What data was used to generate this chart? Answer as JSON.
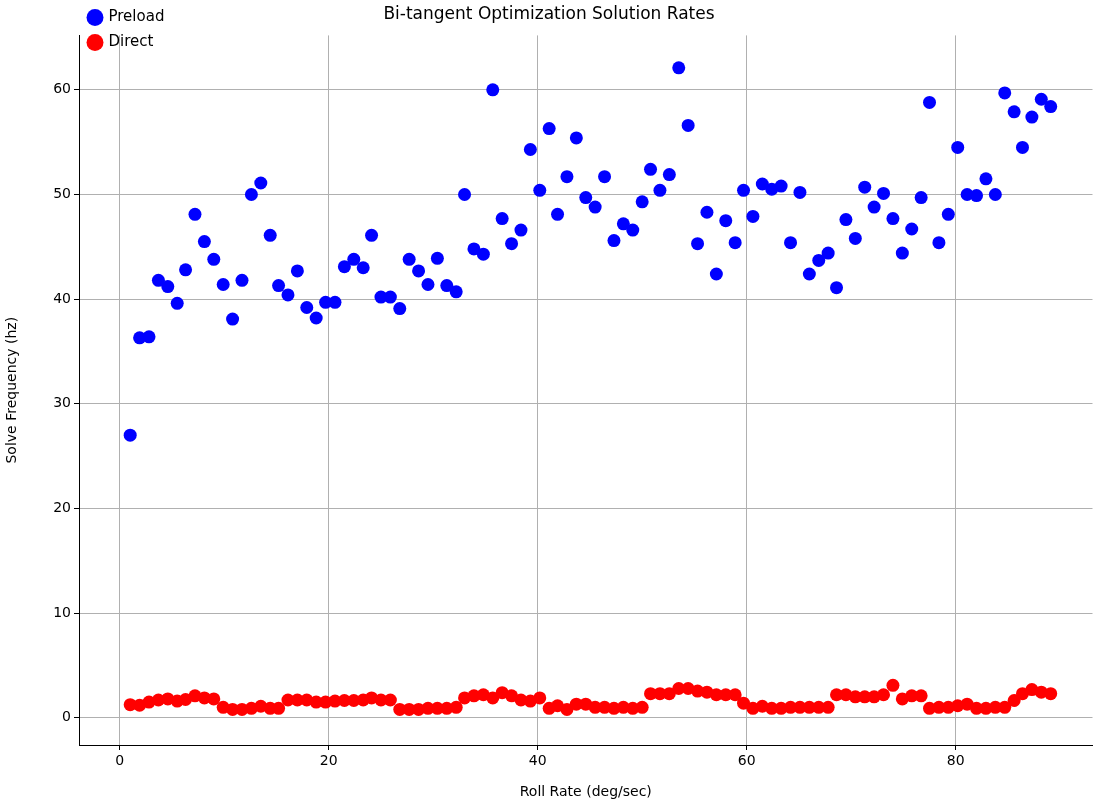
{
  "chart_data": {
    "type": "scatter",
    "title": "Bi-tangent Optimization Solution Rates",
    "xlabel": "Roll Rate (deg/sec)",
    "ylabel": "Solve Frequency (hz)",
    "x": [
      1.0,
      1.9,
      2.8,
      3.7,
      4.6,
      5.5,
      6.3,
      7.2,
      8.1,
      9.0,
      9.9,
      10.8,
      11.7,
      12.6,
      13.5,
      14.4,
      15.2,
      16.1,
      17.0,
      17.9,
      18.8,
      19.7,
      20.6,
      21.5,
      22.4,
      23.3,
      24.1,
      25.0,
      25.9,
      26.8,
      27.7,
      28.6,
      29.5,
      30.4,
      31.3,
      32.2,
      33.0,
      33.9,
      34.8,
      35.7,
      36.6,
      37.5,
      38.4,
      39.3,
      40.2,
      41.1,
      41.9,
      42.8,
      43.7,
      44.6,
      45.5,
      46.4,
      47.3,
      48.2,
      49.1,
      50.0,
      50.8,
      51.7,
      52.6,
      53.5,
      54.4,
      55.3,
      56.2,
      57.1,
      58.0,
      58.9,
      59.7,
      60.6,
      61.5,
      62.4,
      63.3,
      64.2,
      65.1,
      66.0,
      66.9,
      67.8,
      68.6,
      69.5,
      70.4,
      71.3,
      72.2,
      73.1,
      74.0,
      74.9,
      75.8,
      76.7,
      77.5,
      78.4,
      79.3,
      80.2,
      81.1,
      82.0,
      82.9,
      83.8,
      84.7,
      85.6,
      86.4,
      87.3,
      88.2,
      89.1
    ],
    "series": [
      {
        "name": "Preload",
        "color": "#0000ff",
        "values": [
          27.0,
          36.3,
          36.4,
          41.8,
          41.2,
          39.6,
          42.8,
          48.1,
          45.5,
          43.8,
          41.4,
          38.1,
          41.8,
          50.0,
          51.1,
          46.1,
          41.3,
          40.4,
          42.7,
          39.2,
          38.2,
          39.7,
          39.7,
          43.1,
          43.8,
          43.0,
          46.1,
          40.2,
          40.2,
          39.1,
          43.8,
          42.7,
          41.4,
          43.9,
          41.3,
          40.7,
          50.0,
          44.8,
          44.3,
          60.0,
          47.7,
          45.3,
          46.6,
          54.3,
          50.4,
          56.3,
          48.1,
          51.7,
          55.4,
          49.7,
          48.8,
          51.7,
          45.6,
          47.2,
          46.6,
          49.3,
          52.4,
          50.4,
          51.9,
          62.1,
          56.6,
          45.3,
          48.3,
          42.4,
          47.5,
          45.4,
          50.4,
          47.9,
          51.0,
          50.5,
          50.8,
          45.4,
          50.2,
          42.4,
          43.7,
          44.4,
          41.1,
          47.6,
          45.8,
          50.7,
          48.8,
          50.1,
          47.7,
          44.4,
          46.7,
          49.7,
          58.8,
          45.4,
          48.1,
          54.5,
          50.0,
          49.9,
          51.5,
          50.0,
          59.7,
          57.9,
          54.5,
          57.4,
          59.1,
          58.4
        ]
      },
      {
        "name": "Direct",
        "color": "#ff0000",
        "values": [
          1.25,
          1.2,
          1.5,
          1.7,
          1.8,
          1.6,
          1.75,
          2.1,
          1.9,
          1.8,
          1.0,
          0.8,
          0.8,
          0.9,
          1.1,
          0.9,
          0.9,
          1.7,
          1.7,
          1.7,
          1.5,
          1.5,
          1.6,
          1.65,
          1.65,
          1.7,
          1.9,
          1.7,
          1.7,
          0.8,
          0.8,
          0.8,
          0.9,
          0.9,
          0.9,
          1.0,
          1.9,
          2.1,
          2.2,
          1.9,
          2.4,
          2.1,
          1.7,
          1.6,
          1.9,
          0.9,
          1.15,
          0.8,
          1.3,
          1.3,
          1.0,
          1.0,
          0.9,
          1.0,
          0.9,
          1.0,
          2.3,
          2.3,
          2.3,
          2.8,
          2.8,
          2.55,
          2.45,
          2.2,
          2.2,
          2.2,
          1.4,
          0.9,
          1.1,
          0.9,
          0.9,
          1.0,
          1.0,
          1.0,
          1.0,
          1.0,
          2.2,
          2.2,
          2.0,
          2.0,
          2.0,
          2.2,
          3.1,
          1.8,
          2.1,
          2.1,
          0.9,
          1.0,
          1.0,
          1.15,
          1.3,
          0.9,
          0.9,
          1.0,
          1.0,
          1.65,
          2.3,
          2.7,
          2.45,
          2.3
        ]
      }
    ],
    "xlim": [
      -3.9,
      93.1
    ],
    "ylim": [
      -2.6,
      65.2
    ],
    "xticks": [
      0,
      20,
      40,
      60,
      80
    ],
    "yticks": [
      0,
      10,
      20,
      30,
      40,
      50,
      60
    ],
    "grid": true,
    "legend": "top left",
    "marker": "circle"
  }
}
